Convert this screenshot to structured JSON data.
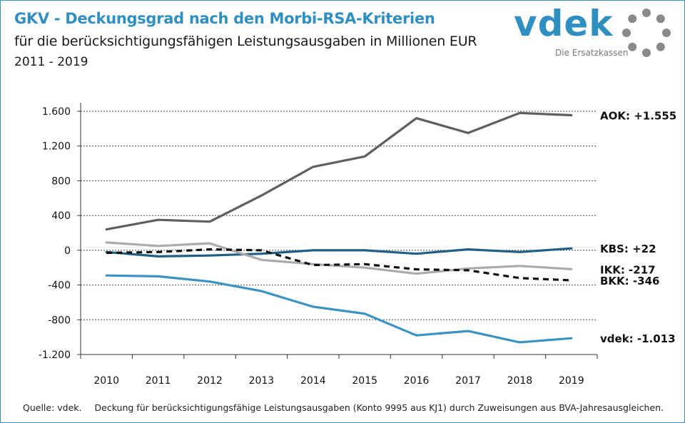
{
  "header": {
    "title": "GKV - Deckungsgrad nach den Morbi-RSA-Kriterien",
    "subtitle": "für die berücksichtigungsfähigen Leistungsausgaben in Millionen EUR",
    "period": "2011 - 2019"
  },
  "logo": {
    "word": "vdek",
    "tagline": "Die Ersatzkassen",
    "color": "#2f8fc0"
  },
  "footer": {
    "source": "Quelle: vdek.",
    "note": "Deckung für berücksichtigungsfähige Leistungsausgaben (Konto 9995 aus KJ1) durch Zuweisungen aus BVA-Jahresausgleichen."
  },
  "chart_data": {
    "type": "line",
    "x": [
      2010,
      2011,
      2012,
      2013,
      2014,
      2015,
      2016,
      2017,
      2018,
      2019
    ],
    "ylim": [
      -1200,
      1600
    ],
    "yticks": [
      -1200,
      -800,
      -400,
      0,
      400,
      800,
      1200,
      1600
    ],
    "ytick_labels": [
      "-1.200",
      "-800",
      "-400",
      "0",
      "400",
      "800",
      "1.200",
      "1.600"
    ],
    "grid": "horizontal-dotted",
    "series": [
      {
        "key": "aok",
        "label": "AOK: +1.555",
        "color": "#5f5f5f",
        "dash": "",
        "values": [
          240,
          350,
          330,
          630,
          960,
          1080,
          1520,
          1350,
          1580,
          1555
        ]
      },
      {
        "key": "kbs",
        "label": "KBS: +22",
        "color": "#1f5f86",
        "dash": "",
        "values": [
          -20,
          -70,
          -60,
          -40,
          0,
          0,
          -40,
          10,
          -20,
          22
        ]
      },
      {
        "key": "ikk",
        "label": "IKK: -217",
        "color": "#ababab",
        "dash": "",
        "values": [
          90,
          50,
          80,
          -110,
          -160,
          -200,
          -270,
          -210,
          -180,
          -217
        ]
      },
      {
        "key": "bkk",
        "label": "BKK: -346",
        "color": "#111111",
        "dash": "8 6",
        "values": [
          -30,
          -20,
          10,
          0,
          -170,
          -160,
          -220,
          -230,
          -320,
          -346
        ]
      },
      {
        "key": "vdek",
        "label": "vdek: -1.013",
        "color": "#3a93c3",
        "dash": "",
        "values": [
          -290,
          -300,
          -360,
          -470,
          -650,
          -730,
          -980,
          -930,
          -1060,
          -1013
        ]
      }
    ]
  }
}
